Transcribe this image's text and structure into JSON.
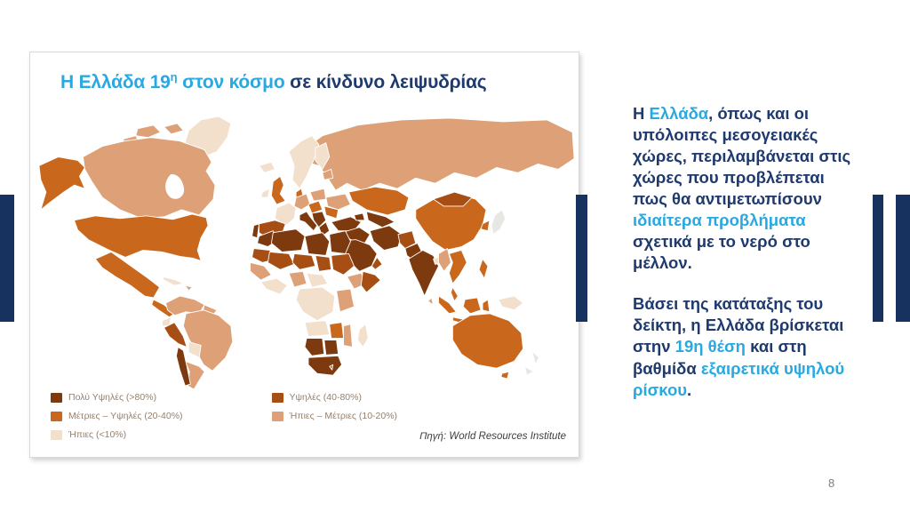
{
  "slide": {
    "page_number": "8"
  },
  "colors": {
    "accent_blue": "#29a9e1",
    "text_navy": "#1e3a6e",
    "bar_navy": "#17325e",
    "legend_text": "#95806e",
    "page_number_gray": "#7f7f7f"
  },
  "title": {
    "runs": [
      {
        "t": "Η Ελλάδα 19",
        "c": "accent"
      },
      {
        "t": "η",
        "c": "accent",
        "sup": true
      },
      {
        "t": " στον κόσμο",
        "c": "accent"
      },
      {
        "t": " σε κίνδυνο λειψυδρίας",
        "c": "navy"
      }
    ]
  },
  "map": {
    "palette": {
      "vh": "#7e3a0f",
      "high": "#a64e13",
      "medhigh": "#c9671d",
      "lowmed": "#dda077",
      "low": "#f2dfcc",
      "nodata": "#e9e7e4",
      "water": "#ffffff"
    },
    "source": "Πηγή: World Resources Institute"
  },
  "legend": {
    "items": [
      {
        "label": "Πολύ Υψηλές (>80%)",
        "key": "vh"
      },
      {
        "label": "Υψηλές (40-80%)",
        "key": "high"
      },
      {
        "label": "Μέτριες – Υψηλές (20-40%)",
        "key": "medhigh"
      },
      {
        "label": "Ήπιες – Μέτριες (10-20%)",
        "key": "lowmed"
      },
      {
        "label": "Ήπιες (<10%)",
        "key": "low"
      }
    ]
  },
  "right_panel": {
    "p1": [
      {
        "t": "Η ",
        "c": "navy"
      },
      {
        "t": "Ελλάδα",
        "c": "accent"
      },
      {
        "t": ", όπως και οι υπόλοιπες μεσογειακές χώρες, περιλαμβάνεται στις χώρες που προβλέπεται πως θα αντιμετωπίσουν ",
        "c": "navy"
      },
      {
        "t": "ιδιαίτερα προβλήματα",
        "c": "accent"
      },
      {
        "t": " σχετικά με το νερό στο μέλλον.",
        "c": "navy"
      }
    ],
    "p2": [
      {
        "t": "Βάσει της κατάταξης του δείκτη, η Ελλάδα βρίσκεται στην ",
        "c": "navy"
      },
      {
        "t": "19η θέση",
        "c": "accent"
      },
      {
        "t": " και στη βαθμίδα ",
        "c": "navy"
      },
      {
        "t": "εξαιρετικά υψηλού ρίσκου",
        "c": "accent"
      },
      {
        "t": ".",
        "c": "navy"
      }
    ]
  }
}
